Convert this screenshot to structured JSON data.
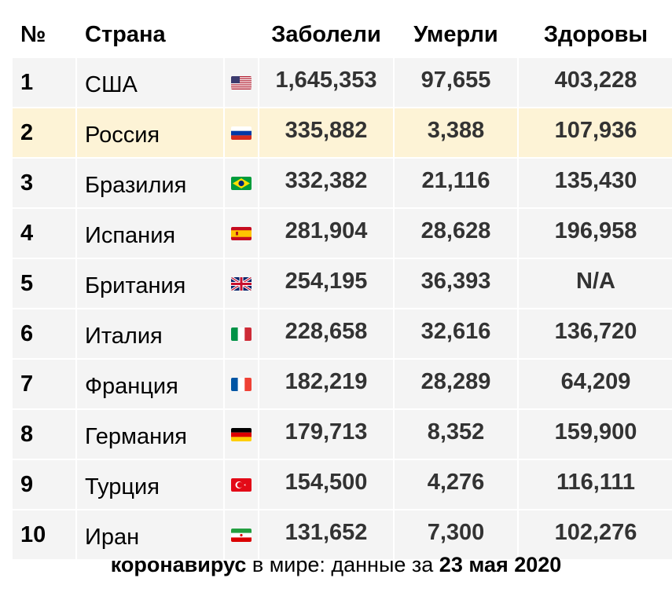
{
  "headers": {
    "num": "№",
    "country": "Страна",
    "cases": "Заболели",
    "deaths": "Умерли",
    "recovered": "Здоровы"
  },
  "rows": [
    {
      "num": "1",
      "country": "США",
      "flag": "us-flag-icon",
      "cases": "1,645,353",
      "deaths": "97,655",
      "recovered": "403,228"
    },
    {
      "num": "2",
      "country": "Россия",
      "flag": "russia-flag-icon",
      "cases": "335,882",
      "deaths": "3,388",
      "recovered": "107,936"
    },
    {
      "num": "3",
      "country": "Бразилия",
      "flag": "brazil-flag-icon",
      "cases": "332,382",
      "deaths": "21,116",
      "recovered": "135,430"
    },
    {
      "num": "4",
      "country": "Испания",
      "flag": "spain-flag-icon",
      "cases": "281,904",
      "deaths": "28,628",
      "recovered": "196,958"
    },
    {
      "num": "5",
      "country": "Британия",
      "flag": "uk-flag-icon",
      "cases": "254,195",
      "deaths": "36,393",
      "recovered": "N/A"
    },
    {
      "num": "6",
      "country": "Италия",
      "flag": "italy-flag-icon",
      "cases": "228,658",
      "deaths": "32,616",
      "recovered": "136,720"
    },
    {
      "num": "7",
      "country": "Франция",
      "flag": "france-flag-icon",
      "cases": "182,219",
      "deaths": "28,289",
      "recovered": "64,209"
    },
    {
      "num": "8",
      "country": "Германия",
      "flag": "germany-flag-icon",
      "cases": "179,713",
      "deaths": "8,352",
      "recovered": "159,900"
    },
    {
      "num": "9",
      "country": "Турция",
      "flag": "turkey-flag-icon",
      "cases": "154,500",
      "deaths": "4,276",
      "recovered": "116,111"
    },
    {
      "num": "10",
      "country": "Иран",
      "flag": "iran-flag-icon",
      "cases": "131,652",
      "deaths": "7,300",
      "recovered": "102,276"
    }
  ],
  "highlight_color": "#fdf3d6",
  "caption": {
    "bold_start": "коронавирус",
    "middle": " в мире: данные за ",
    "bold_end": "23 мая 2020"
  }
}
